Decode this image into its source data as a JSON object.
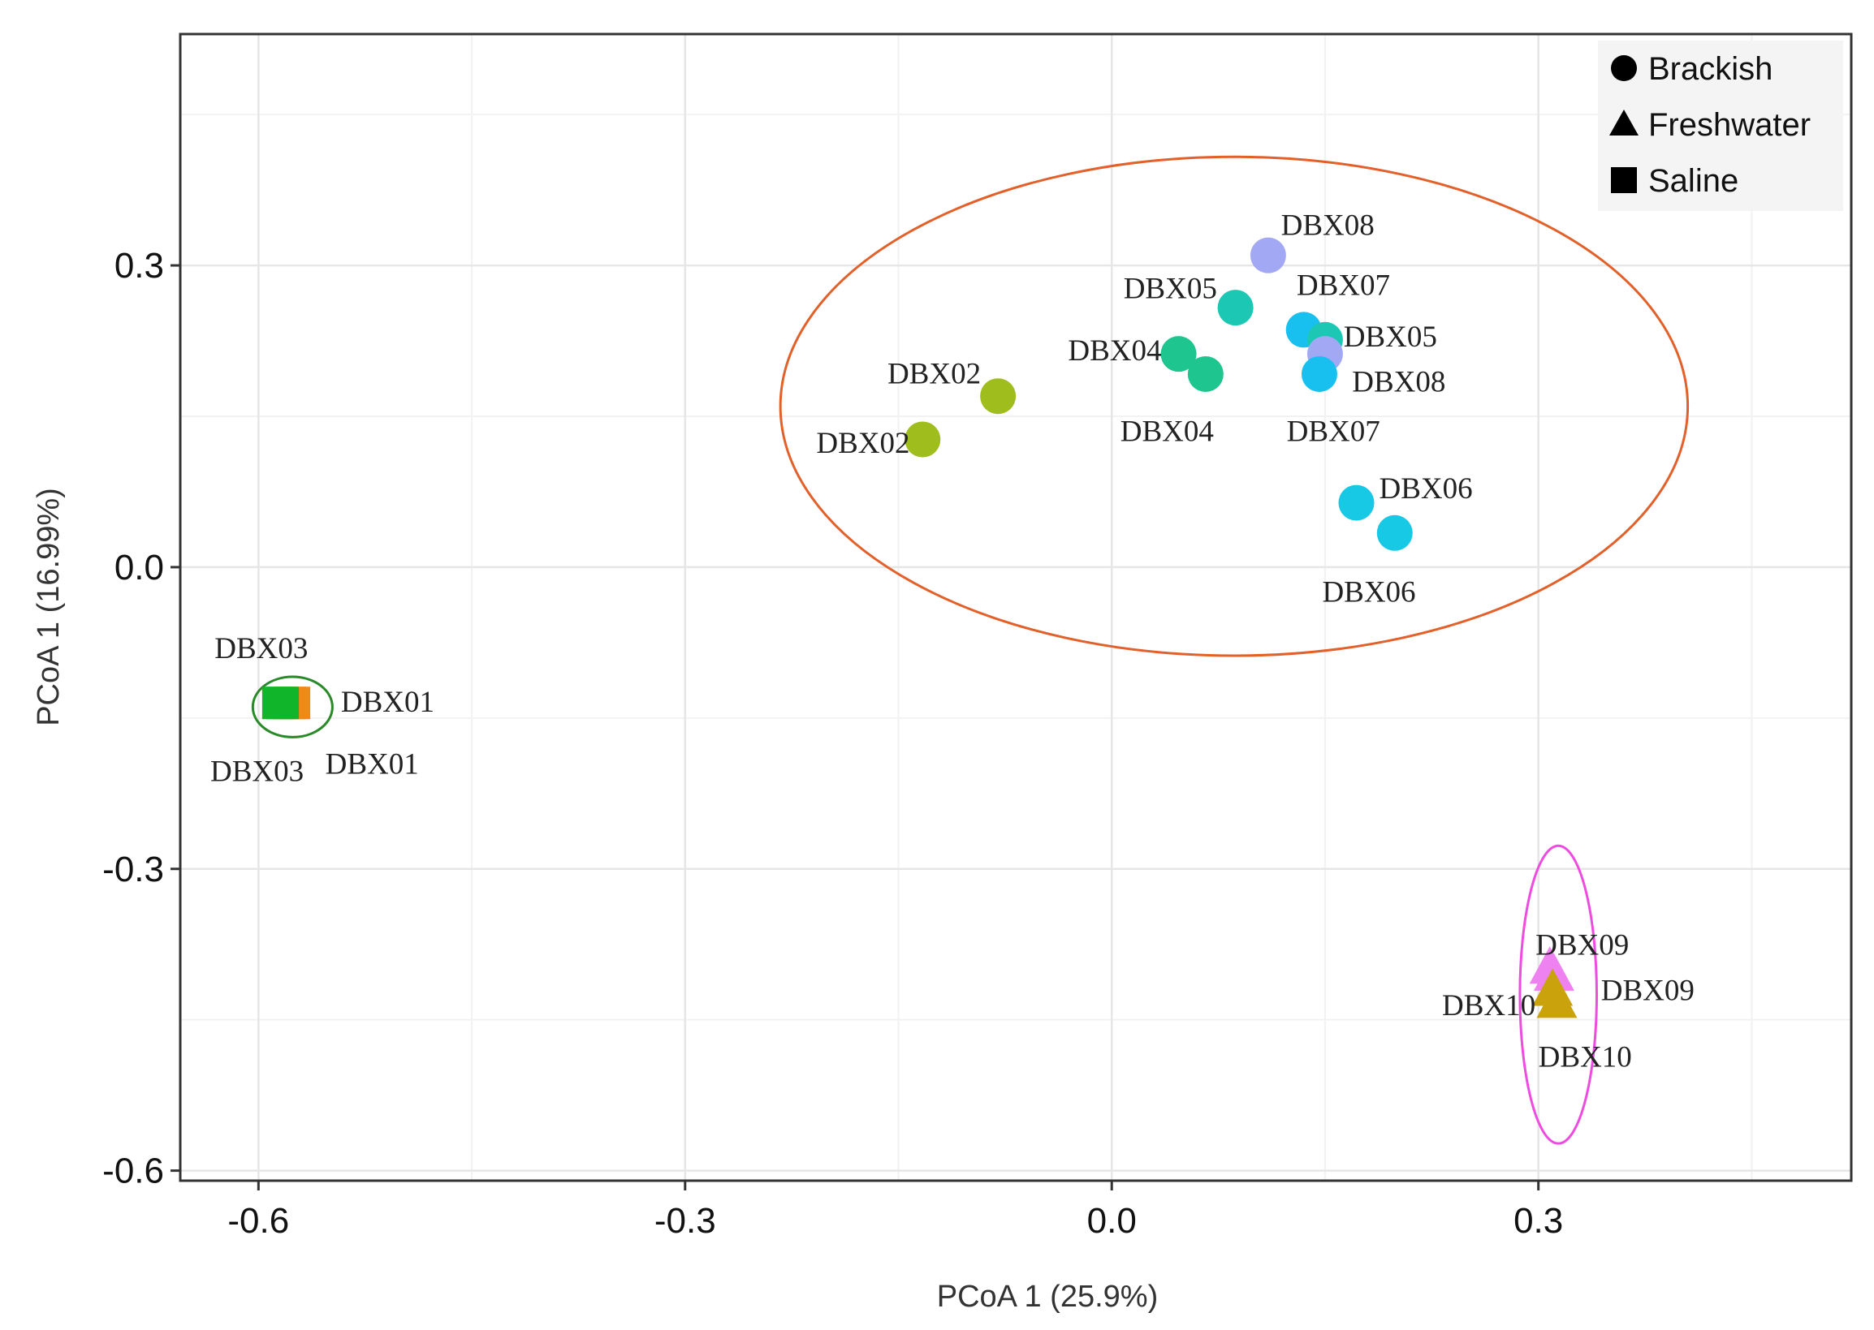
{
  "chart_data": {
    "type": "scatter",
    "xlabel": "PCoA 1 (25.9%)",
    "ylabel": "PCoA 1 (16.99%)",
    "xlim": [
      -0.655,
      0.52
    ],
    "ylim": [
      -0.61,
      0.53
    ],
    "xticks": [
      -0.6,
      -0.3,
      0.0,
      0.3
    ],
    "xtick_labels": [
      "-0.6",
      "-0.3",
      "0.0",
      "0.3"
    ],
    "yticks": [
      -0.6,
      -0.3,
      0.0,
      0.3
    ],
    "ytick_labels": [
      "-0.6",
      "-0.3",
      "0.0",
      "0.3"
    ],
    "grid": true,
    "legend_position": "top-right",
    "legend": [
      {
        "label": "Brackish",
        "shape": "circle"
      },
      {
        "label": "Freshwater",
        "shape": "triangle"
      },
      {
        "label": "Saline",
        "shape": "square"
      }
    ],
    "points": [
      {
        "x": 0.11,
        "y": 0.31,
        "shape": "circle",
        "color": "#a3a8f5",
        "label": "DBX08",
        "label_dx": 0.009,
        "label_dy": 0.031,
        "anchor": "start"
      },
      {
        "x": 0.087,
        "y": 0.258,
        "shape": "circle",
        "color": "#1cc7b4",
        "label": "DBX05",
        "label_dx": -0.013,
        "label_dy": 0.02,
        "anchor": "end"
      },
      {
        "x": 0.135,
        "y": 0.236,
        "shape": "circle",
        "color": "#18c0f0",
        "label": "DBX07",
        "label_dx": -0.005,
        "label_dy": 0.045,
        "anchor": "start"
      },
      {
        "x": 0.15,
        "y": 0.226,
        "shape": "circle",
        "color": "#1cc7b4",
        "label": "DBX05",
        "label_dx": 0.013,
        "label_dy": 0.004,
        "anchor": "start"
      },
      {
        "x": 0.15,
        "y": 0.212,
        "shape": "circle",
        "color": "#a3a8f5",
        "label": "DBX08",
        "label_dx": 0.019,
        "label_dy": -0.027,
        "anchor": "start"
      },
      {
        "x": 0.146,
        "y": 0.192,
        "shape": "circle",
        "color": "#18c0f0",
        "label": "DBX07",
        "label_dx": -0.023,
        "label_dy": -0.056,
        "anchor": "start"
      },
      {
        "x": 0.047,
        "y": 0.212,
        "shape": "circle",
        "color": "#1ec58e",
        "label": "DBX04",
        "label_dx": -0.012,
        "label_dy": 0.004,
        "anchor": "end"
      },
      {
        "x": 0.066,
        "y": 0.192,
        "shape": "circle",
        "color": "#1ec58e",
        "label": "DBX04",
        "label_dx": -0.06,
        "label_dy": -0.056,
        "anchor": "start"
      },
      {
        "x": -0.08,
        "y": 0.17,
        "shape": "circle",
        "color": "#9fbe1e",
        "label": "DBX02",
        "label_dx": -0.012,
        "label_dy": 0.023,
        "anchor": "end"
      },
      {
        "x": -0.133,
        "y": 0.127,
        "shape": "circle",
        "color": "#9fbe1e",
        "label": "DBX02",
        "label_dx": -0.009,
        "label_dy": -0.003,
        "anchor": "end"
      },
      {
        "x": 0.172,
        "y": 0.064,
        "shape": "circle",
        "color": "#18c9e6",
        "label": "DBX06",
        "label_dx": 0.016,
        "label_dy": 0.015,
        "anchor": "start"
      },
      {
        "x": 0.199,
        "y": 0.034,
        "shape": "circle",
        "color": "#18c9e6",
        "label": "DBX06",
        "label_dx": -0.051,
        "label_dy": -0.058,
        "anchor": "start"
      },
      {
        "x": -0.575,
        "y": -0.135,
        "shape": "square",
        "color": "#ef8a17",
        "label": "DBX01",
        "label_dx": 0.033,
        "label_dy": 0.002,
        "anchor": "start"
      },
      {
        "x": -0.578,
        "y": -0.135,
        "shape": "square",
        "color": "#ef8a17",
        "label": "DBX01",
        "label_dx": 0.025,
        "label_dy": -0.06,
        "anchor": "start"
      },
      {
        "x": -0.583,
        "y": -0.135,
        "shape": "square",
        "color": "#11b52a",
        "label": "DBX03",
        "label_dx": -0.015,
        "label_dy": 0.055,
        "anchor": "middle"
      },
      {
        "x": -0.586,
        "y": -0.135,
        "shape": "square",
        "color": "#11b52a",
        "label": "DBX03",
        "label_dx": -0.015,
        "label_dy": -0.067,
        "anchor": "middle"
      },
      {
        "x": 0.308,
        "y": -0.398,
        "shape": "triangle",
        "color": "#ee82f0",
        "label": "DBX09",
        "label_dx": -0.01,
        "label_dy": 0.023,
        "anchor": "start"
      },
      {
        "x": 0.311,
        "y": -0.405,
        "shape": "triangle",
        "color": "#ee82f0",
        "label": "DBX09",
        "label_dx": 0.033,
        "label_dy": -0.015,
        "anchor": "start"
      },
      {
        "x": 0.31,
        "y": -0.42,
        "shape": "triangle",
        "color": "#c9a20c",
        "label": "DBX10",
        "label_dx": -0.012,
        "label_dy": -0.015,
        "anchor": "end"
      },
      {
        "x": 0.313,
        "y": -0.432,
        "shape": "triangle",
        "color": "#c9a20c",
        "label": "DBX10",
        "label_dx": -0.013,
        "label_dy": -0.054,
        "anchor": "start"
      }
    ],
    "ellipses": [
      {
        "cx": 0.086,
        "cy": 0.16,
        "rx": 0.319,
        "ry": 0.248,
        "color": "#e2612a"
      },
      {
        "cx": -0.576,
        "cy": -0.139,
        "rx": 0.028,
        "ry": 0.03,
        "color": "#2a8a2a"
      },
      {
        "cx": 0.314,
        "cy": -0.425,
        "rx": 0.027,
        "ry": 0.148,
        "color": "#ee4ce0"
      }
    ]
  }
}
